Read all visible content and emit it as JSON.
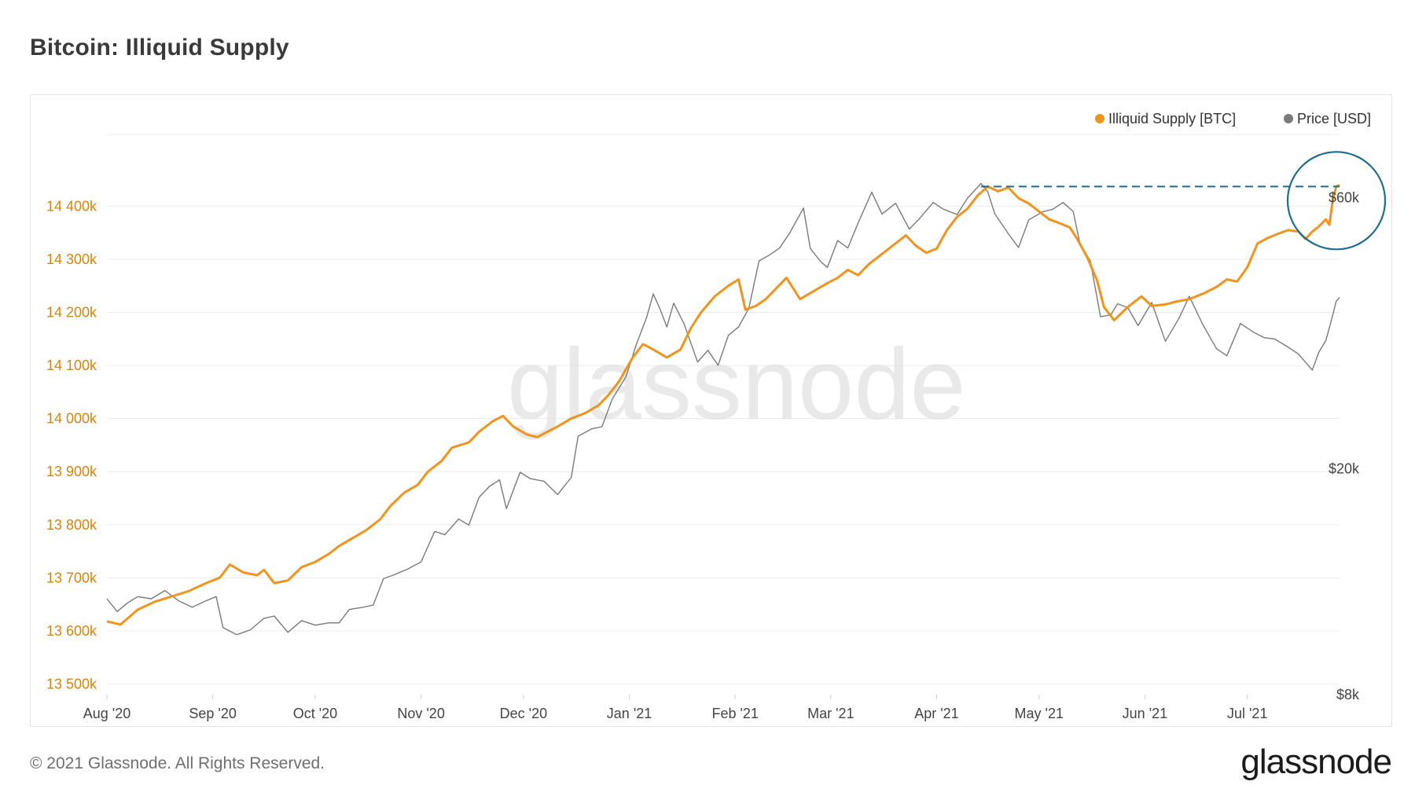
{
  "title": "Bitcoin: Illiquid Supply",
  "footer": {
    "copyright": "© 2021 Glassnode. All Rights Reserved.",
    "logo": "glassnode"
  },
  "watermark": "glassnode",
  "colors": {
    "illiquid": "#f0941d",
    "price": "#7a7a7a",
    "annotation": "#1f6e8c",
    "grid": "#ececec",
    "left_axis_text": "#d68410"
  },
  "chart_data": {
    "type": "line",
    "title": "Bitcoin: Illiquid Supply",
    "x_axis": {
      "type": "date",
      "range": [
        "2020-08-01",
        "2021-07-28"
      ],
      "tick_labels": [
        "Aug '20",
        "Sep '20",
        "Oct '20",
        "Nov '20",
        "Dec '20",
        "Jan '21",
        "Feb '21",
        "Mar '21",
        "Apr '21",
        "May '21",
        "Jun '21",
        "Jul '21"
      ],
      "tick_dates": [
        "2020-08-01",
        "2020-09-01",
        "2020-10-01",
        "2020-11-01",
        "2020-12-01",
        "2021-01-01",
        "2021-02-01",
        "2021-03-01",
        "2021-04-01",
        "2021-05-01",
        "2021-06-01",
        "2021-07-01"
      ]
    },
    "y_axis_left": {
      "unit": "BTC",
      "range": [
        13480000,
        14550000
      ],
      "tick_values": [
        13500000,
        13600000,
        13700000,
        13800000,
        13900000,
        14000000,
        14100000,
        14200000,
        14300000,
        14400000
      ],
      "tick_labels": [
        "13 500k",
        "13 600k",
        "13 700k",
        "13 800k",
        "13 900k",
        "14 000k",
        "14 100k",
        "14 200k",
        "14 300k",
        "14 400k"
      ]
    },
    "y_axis_right": {
      "unit": "USD",
      "scale": "log",
      "range": [
        8000,
        80000
      ],
      "tick_values": [
        8000,
        20000,
        60000
      ],
      "tick_labels": [
        "$8k",
        "$20k",
        "$60k"
      ]
    },
    "legend": {
      "placement": "top-right",
      "entries": [
        "Illiquid Supply [BTC]",
        "Price [USD]"
      ]
    },
    "grid": true,
    "series": [
      {
        "name": "Illiquid Supply [BTC]",
        "axis": "left",
        "color": "#f0941d",
        "points": [
          [
            "2020-08-01",
            13618000
          ],
          [
            "2020-08-05",
            13612000
          ],
          [
            "2020-08-10",
            13640000
          ],
          [
            "2020-08-15",
            13655000
          ],
          [
            "2020-08-20",
            13665000
          ],
          [
            "2020-08-25",
            13675000
          ],
          [
            "2020-08-30",
            13690000
          ],
          [
            "2020-09-03",
            13700000
          ],
          [
            "2020-09-06",
            13725000
          ],
          [
            "2020-09-10",
            13710000
          ],
          [
            "2020-09-14",
            13705000
          ],
          [
            "2020-09-16",
            13715000
          ],
          [
            "2020-09-19",
            13690000
          ],
          [
            "2020-09-23",
            13695000
          ],
          [
            "2020-09-27",
            13720000
          ],
          [
            "2020-10-01",
            13730000
          ],
          [
            "2020-10-05",
            13745000
          ],
          [
            "2020-10-08",
            13760000
          ],
          [
            "2020-10-12",
            13775000
          ],
          [
            "2020-10-16",
            13790000
          ],
          [
            "2020-10-20",
            13810000
          ],
          [
            "2020-10-23",
            13835000
          ],
          [
            "2020-10-27",
            13860000
          ],
          [
            "2020-10-31",
            13875000
          ],
          [
            "2020-11-03",
            13900000
          ],
          [
            "2020-11-07",
            13920000
          ],
          [
            "2020-11-10",
            13945000
          ],
          [
            "2020-11-15",
            13955000
          ],
          [
            "2020-11-18",
            13975000
          ],
          [
            "2020-11-22",
            13995000
          ],
          [
            "2020-11-25",
            14005000
          ],
          [
            "2020-11-28",
            13985000
          ],
          [
            "2020-12-02",
            13970000
          ],
          [
            "2020-12-05",
            13965000
          ],
          [
            "2020-12-08",
            13975000
          ],
          [
            "2020-12-11",
            13985000
          ],
          [
            "2020-12-15",
            14000000
          ],
          [
            "2020-12-19",
            14010000
          ],
          [
            "2020-12-23",
            14025000
          ],
          [
            "2020-12-26",
            14045000
          ],
          [
            "2020-12-29",
            14070000
          ],
          [
            "2021-01-02",
            14115000
          ],
          [
            "2021-01-05",
            14140000
          ],
          [
            "2021-01-08",
            14130000
          ],
          [
            "2021-01-12",
            14115000
          ],
          [
            "2021-01-16",
            14130000
          ],
          [
            "2021-01-19",
            14170000
          ],
          [
            "2021-01-22",
            14200000
          ],
          [
            "2021-01-26",
            14230000
          ],
          [
            "2021-01-30",
            14250000
          ],
          [
            "2021-02-02",
            14262000
          ],
          [
            "2021-02-04",
            14205000
          ],
          [
            "2021-02-07",
            14212000
          ],
          [
            "2021-02-10",
            14225000
          ],
          [
            "2021-02-13",
            14245000
          ],
          [
            "2021-02-16",
            14265000
          ],
          [
            "2021-02-20",
            14225000
          ],
          [
            "2021-02-24",
            14240000
          ],
          [
            "2021-02-28",
            14255000
          ],
          [
            "2021-03-03",
            14265000
          ],
          [
            "2021-03-06",
            14280000
          ],
          [
            "2021-03-09",
            14270000
          ],
          [
            "2021-03-12",
            14290000
          ],
          [
            "2021-03-16",
            14310000
          ],
          [
            "2021-03-20",
            14330000
          ],
          [
            "2021-03-23",
            14345000
          ],
          [
            "2021-03-26",
            14325000
          ],
          [
            "2021-03-29",
            14312000
          ],
          [
            "2021-04-01",
            14320000
          ],
          [
            "2021-04-04",
            14355000
          ],
          [
            "2021-04-07",
            14380000
          ],
          [
            "2021-04-10",
            14395000
          ],
          [
            "2021-04-13",
            14420000
          ],
          [
            "2021-04-16",
            14437000
          ],
          [
            "2021-04-19",
            14428000
          ],
          [
            "2021-04-22",
            14435000
          ],
          [
            "2021-04-25",
            14415000
          ],
          [
            "2021-04-28",
            14405000
          ],
          [
            "2021-05-01",
            14390000
          ],
          [
            "2021-05-04",
            14375000
          ],
          [
            "2021-05-07",
            14368000
          ],
          [
            "2021-05-10",
            14360000
          ],
          [
            "2021-05-12",
            14340000
          ],
          [
            "2021-05-15",
            14305000
          ],
          [
            "2021-05-18",
            14260000
          ],
          [
            "2021-05-20",
            14210000
          ],
          [
            "2021-05-23",
            14185000
          ],
          [
            "2021-05-27",
            14210000
          ],
          [
            "2021-05-31",
            14230000
          ],
          [
            "2021-06-03",
            14212000
          ],
          [
            "2021-06-07",
            14215000
          ],
          [
            "2021-06-10",
            14220000
          ],
          [
            "2021-06-14",
            14225000
          ],
          [
            "2021-06-18",
            14235000
          ],
          [
            "2021-06-22",
            14248000
          ],
          [
            "2021-06-25",
            14262000
          ],
          [
            "2021-06-28",
            14258000
          ],
          [
            "2021-07-01",
            14285000
          ],
          [
            "2021-07-04",
            14330000
          ],
          [
            "2021-07-07",
            14340000
          ],
          [
            "2021-07-10",
            14348000
          ],
          [
            "2021-07-13",
            14355000
          ],
          [
            "2021-07-16",
            14352000
          ],
          [
            "2021-07-18",
            14338000
          ],
          [
            "2021-07-20",
            14352000
          ],
          [
            "2021-07-22",
            14362000
          ],
          [
            "2021-07-24",
            14375000
          ],
          [
            "2021-07-25",
            14365000
          ],
          [
            "2021-07-26",
            14410000
          ],
          [
            "2021-07-27",
            14437000
          ],
          [
            "2021-07-28",
            14440000
          ]
        ]
      },
      {
        "name": "Price [USD]",
        "axis": "right",
        "color": "#7a7a7a",
        "points": [
          [
            "2020-08-01",
            11800
          ],
          [
            "2020-08-04",
            11200
          ],
          [
            "2020-08-07",
            11600
          ],
          [
            "2020-08-10",
            11900
          ],
          [
            "2020-08-14",
            11800
          ],
          [
            "2020-08-18",
            12200
          ],
          [
            "2020-08-22",
            11700
          ],
          [
            "2020-08-26",
            11400
          ],
          [
            "2020-08-30",
            11700
          ],
          [
            "2020-09-02",
            11900
          ],
          [
            "2020-09-04",
            10500
          ],
          [
            "2020-09-08",
            10200
          ],
          [
            "2020-09-12",
            10400
          ],
          [
            "2020-09-16",
            10900
          ],
          [
            "2020-09-19",
            11000
          ],
          [
            "2020-09-23",
            10300
          ],
          [
            "2020-09-27",
            10800
          ],
          [
            "2020-10-01",
            10600
          ],
          [
            "2020-10-05",
            10700
          ],
          [
            "2020-10-08",
            10700
          ],
          [
            "2020-10-11",
            11300
          ],
          [
            "2020-10-15",
            11400
          ],
          [
            "2020-10-18",
            11500
          ],
          [
            "2020-10-21",
            12800
          ],
          [
            "2020-10-24",
            13000
          ],
          [
            "2020-10-28",
            13300
          ],
          [
            "2020-11-01",
            13700
          ],
          [
            "2020-11-05",
            15500
          ],
          [
            "2020-11-08",
            15300
          ],
          [
            "2020-11-12",
            16300
          ],
          [
            "2020-11-15",
            15900
          ],
          [
            "2020-11-18",
            17800
          ],
          [
            "2020-11-21",
            18600
          ],
          [
            "2020-11-24",
            19100
          ],
          [
            "2020-11-26",
            17000
          ],
          [
            "2020-11-30",
            19700
          ],
          [
            "2020-12-03",
            19200
          ],
          [
            "2020-12-07",
            19000
          ],
          [
            "2020-12-11",
            18000
          ],
          [
            "2020-12-15",
            19300
          ],
          [
            "2020-12-17",
            22800
          ],
          [
            "2020-12-21",
            23500
          ],
          [
            "2020-12-24",
            23700
          ],
          [
            "2020-12-27",
            26500
          ],
          [
            "2020-12-31",
            29000
          ],
          [
            "2021-01-03",
            33000
          ],
          [
            "2021-01-06",
            36800
          ],
          [
            "2021-01-08",
            40600
          ],
          [
            "2021-01-10",
            38200
          ],
          [
            "2021-01-12",
            35500
          ],
          [
            "2021-01-14",
            39100
          ],
          [
            "2021-01-17",
            36000
          ],
          [
            "2021-01-21",
            30800
          ],
          [
            "2021-01-24",
            32300
          ],
          [
            "2021-01-27",
            30400
          ],
          [
            "2021-01-30",
            34300
          ],
          [
            "2021-02-02",
            35500
          ],
          [
            "2021-02-05",
            38300
          ],
          [
            "2021-02-08",
            46400
          ],
          [
            "2021-02-11",
            47500
          ],
          [
            "2021-02-14",
            48900
          ],
          [
            "2021-02-17",
            52000
          ],
          [
            "2021-02-21",
            57500
          ],
          [
            "2021-02-23",
            48800
          ],
          [
            "2021-02-26",
            46300
          ],
          [
            "2021-02-28",
            45200
          ],
          [
            "2021-03-03",
            50400
          ],
          [
            "2021-03-06",
            48900
          ],
          [
            "2021-03-09",
            54100
          ],
          [
            "2021-03-13",
            61300
          ],
          [
            "2021-03-16",
            56100
          ],
          [
            "2021-03-20",
            58600
          ],
          [
            "2021-03-24",
            52800
          ],
          [
            "2021-03-27",
            55100
          ],
          [
            "2021-03-31",
            58800
          ],
          [
            "2021-04-03",
            57200
          ],
          [
            "2021-04-07",
            56000
          ],
          [
            "2021-04-10",
            59800
          ],
          [
            "2021-04-14",
            63500
          ],
          [
            "2021-04-16",
            61400
          ],
          [
            "2021-04-18",
            56200
          ],
          [
            "2021-04-22",
            51800
          ],
          [
            "2021-04-25",
            49000
          ],
          [
            "2021-04-28",
            54800
          ],
          [
            "2021-05-02",
            56600
          ],
          [
            "2021-05-05",
            57200
          ],
          [
            "2021-05-08",
            58800
          ],
          [
            "2021-05-11",
            56700
          ],
          [
            "2021-05-13",
            49700
          ],
          [
            "2021-05-16",
            46400
          ],
          [
            "2021-05-19",
            37000
          ],
          [
            "2021-05-22",
            37300
          ],
          [
            "2021-05-24",
            39000
          ],
          [
            "2021-05-27",
            38400
          ],
          [
            "2021-05-30",
            35700
          ],
          [
            "2021-06-03",
            39200
          ],
          [
            "2021-06-07",
            33500
          ],
          [
            "2021-06-11",
            36800
          ],
          [
            "2021-06-14",
            40200
          ],
          [
            "2021-06-18",
            35800
          ],
          [
            "2021-06-22",
            32500
          ],
          [
            "2021-06-25",
            31600
          ],
          [
            "2021-06-29",
            36000
          ],
          [
            "2021-07-03",
            34700
          ],
          [
            "2021-07-06",
            34000
          ],
          [
            "2021-07-09",
            33800
          ],
          [
            "2021-07-13",
            32700
          ],
          [
            "2021-07-16",
            31800
          ],
          [
            "2021-07-20",
            29800
          ],
          [
            "2021-07-22",
            32100
          ],
          [
            "2021-07-24",
            33600
          ],
          [
            "2021-07-26",
            37200
          ],
          [
            "2021-07-27",
            39400
          ],
          [
            "2021-07-28",
            40000
          ]
        ]
      }
    ],
    "annotations": [
      {
        "type": "dashed-horizontal-line",
        "value": 14437000,
        "axis": "left",
        "from": "2021-04-14",
        "to": "2021-07-28",
        "color": "#1f6e8c"
      },
      {
        "type": "circle",
        "center_date": "2021-07-28",
        "center_value": 14440000,
        "axis": "left",
        "color": "#1f6e8c"
      }
    ]
  }
}
